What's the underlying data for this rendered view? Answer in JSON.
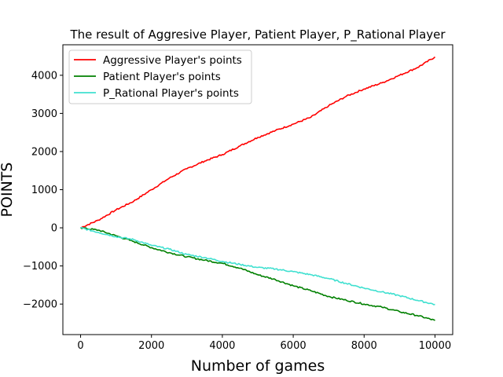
{
  "chart_data": {
    "type": "line",
    "title": "The result of Aggresive Player, Patient Player, P_Rational Player",
    "xlabel": "Number of games",
    "ylabel": "POINTS",
    "xlim": [
      -500,
      10500
    ],
    "ylim": [
      -2800,
      4800
    ],
    "xticks": [
      0,
      2000,
      4000,
      6000,
      8000,
      10000
    ],
    "yticks": [
      -2000,
      -1000,
      0,
      1000,
      2000,
      3000,
      4000
    ],
    "grid": false,
    "legend": "top-left",
    "series": [
      {
        "name": "Aggressive Player's points",
        "color": "#ff0000",
        "x": [
          0,
          500,
          1000,
          1500,
          2000,
          2500,
          3000,
          3500,
          4000,
          4500,
          5000,
          5500,
          6000,
          6500,
          7000,
          7500,
          8000,
          8500,
          9000,
          9500,
          10000
        ],
        "y": [
          0,
          200,
          470,
          700,
          1000,
          1300,
          1550,
          1750,
          1920,
          2150,
          2370,
          2550,
          2720,
          2900,
          3200,
          3450,
          3640,
          3800,
          4000,
          4200,
          4480
        ]
      },
      {
        "name": "Patient Player's points",
        "color": "#008000",
        "x": [
          0,
          500,
          1000,
          1500,
          2000,
          2500,
          3000,
          3500,
          4000,
          4500,
          5000,
          5500,
          6000,
          6500,
          7000,
          7500,
          8000,
          8500,
          9000,
          9500,
          10000
        ],
        "y": [
          0,
          -60,
          -210,
          -360,
          -520,
          -650,
          -760,
          -850,
          -930,
          -1060,
          -1230,
          -1360,
          -1520,
          -1650,
          -1800,
          -1900,
          -2000,
          -2080,
          -2200,
          -2300,
          -2430
        ]
      },
      {
        "name": "P_Rational Player's points",
        "color": "#40e0d0",
        "x": [
          0,
          500,
          1000,
          1500,
          2000,
          2500,
          3000,
          3500,
          4000,
          4500,
          5000,
          5500,
          6000,
          6500,
          7000,
          7500,
          8000,
          8500,
          9000,
          9500,
          10000
        ],
        "y": [
          0,
          -120,
          -230,
          -310,
          -460,
          -560,
          -700,
          -780,
          -880,
          -960,
          -1040,
          -1080,
          -1150,
          -1230,
          -1330,
          -1460,
          -1580,
          -1680,
          -1780,
          -1900,
          -2010
        ]
      }
    ]
  }
}
